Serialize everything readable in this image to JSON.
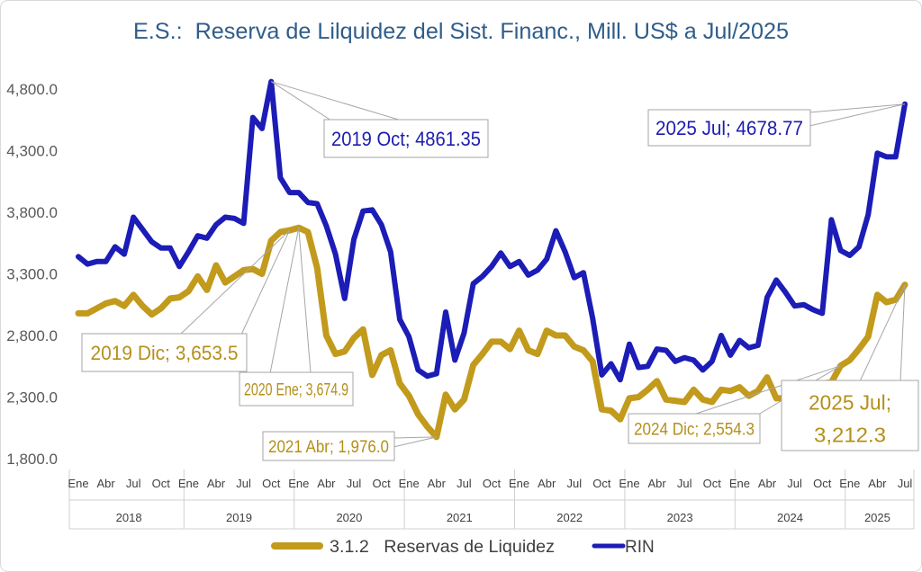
{
  "chart_data": {
    "type": "line",
    "title": "E.S.:  Reserva de Lilquidez del Sist. Financ., Mill. US$ a Jul/2025",
    "x": [
      "2018-01",
      "2018-02",
      "2018-03",
      "2018-04",
      "2018-05",
      "2018-06",
      "2018-07",
      "2018-08",
      "2018-09",
      "2018-10",
      "2018-11",
      "2018-12",
      "2019-01",
      "2019-02",
      "2019-03",
      "2019-04",
      "2019-05",
      "2019-06",
      "2019-07",
      "2019-08",
      "2019-09",
      "2019-10",
      "2019-11",
      "2019-12",
      "2020-01",
      "2020-02",
      "2020-03",
      "2020-04",
      "2020-05",
      "2020-06",
      "2020-07",
      "2020-08",
      "2020-09",
      "2020-10",
      "2020-11",
      "2020-12",
      "2021-01",
      "2021-02",
      "2021-03",
      "2021-04",
      "2021-05",
      "2021-06",
      "2021-07",
      "2021-08",
      "2021-09",
      "2021-10",
      "2021-11",
      "2021-12",
      "2022-01",
      "2022-02",
      "2022-03",
      "2022-04",
      "2022-05",
      "2022-06",
      "2022-07",
      "2022-08",
      "2022-09",
      "2022-10",
      "2022-11",
      "2022-12",
      "2023-01",
      "2023-02",
      "2023-03",
      "2023-04",
      "2023-05",
      "2023-06",
      "2023-07",
      "2023-08",
      "2023-09",
      "2023-10",
      "2023-11",
      "2023-12",
      "2024-01",
      "2024-02",
      "2024-03",
      "2024-04",
      "2024-05",
      "2024-06",
      "2024-07",
      "2024-08",
      "2024-09",
      "2024-10",
      "2024-11",
      "2024-12",
      "2025-01",
      "2025-02",
      "2025-03",
      "2025-04",
      "2025-05",
      "2025-06",
      "2025-07"
    ],
    "series": [
      {
        "name": "3.1.2   Reservas de Liquidez",
        "color": "#c29a1c",
        "values": [
          2980,
          2980,
          3020,
          3060,
          3080,
          3040,
          3130,
          3040,
          2970,
          3020,
          3100,
          3110,
          3160,
          3280,
          3170,
          3370,
          3230,
          3280,
          3330,
          3340,
          3300,
          3570,
          3640,
          3653.5,
          3674.9,
          3640,
          3350,
          2800,
          2650,
          2670,
          2780,
          2850,
          2480,
          2640,
          2680,
          2410,
          2310,
          2160,
          2060,
          1976.0,
          2320,
          2200,
          2280,
          2560,
          2650,
          2750,
          2750,
          2690,
          2840,
          2680,
          2650,
          2840,
          2800,
          2800,
          2710,
          2680,
          2590,
          2200,
          2190,
          2120,
          2290,
          2300,
          2360,
          2430,
          2280,
          2270,
          2260,
          2360,
          2280,
          2260,
          2360,
          2350,
          2380,
          2310,
          2350,
          2460,
          2290,
          2290,
          2360,
          2380,
          2400,
          2410,
          2420,
          2554.3,
          2600,
          2690,
          2790,
          3130,
          3070,
          3090,
          3212.3
        ]
      },
      {
        "name": "RIN",
        "color": "#1c1cb6",
        "values": [
          3440,
          3380,
          3400,
          3400,
          3520,
          3460,
          3760,
          3660,
          3560,
          3510,
          3510,
          3360,
          3480,
          3610,
          3590,
          3700,
          3760,
          3750,
          3710,
          4570,
          4480,
          4861.35,
          4080,
          3960,
          3960,
          3880,
          3870,
          3690,
          3460,
          3100,
          3580,
          3810,
          3820,
          3700,
          3480,
          2930,
          2790,
          2520,
          2470,
          2490,
          2990,
          2600,
          2820,
          3220,
          3280,
          3360,
          3470,
          3360,
          3400,
          3290,
          3330,
          3420,
          3650,
          3480,
          3270,
          3310,
          2940,
          2480,
          2570,
          2440,
          2730,
          2540,
          2550,
          2690,
          2680,
          2590,
          2620,
          2600,
          2520,
          2590,
          2800,
          2640,
          2760,
          2700,
          2720,
          3110,
          3250,
          3150,
          3040,
          3050,
          3010,
          2980,
          3740,
          3490,
          3450,
          3520,
          3780,
          4280,
          4250,
          4250,
          4678.77
        ]
      }
    ],
    "ylim": [
      1800,
      5100
    ],
    "yticks": [
      1800,
      2300,
      2800,
      3300,
      3800,
      4300,
      4800
    ],
    "ytick_labels": [
      "1,800.0",
      "2,300.0",
      "2,800.0",
      "3,300.0",
      "3,800.0",
      "4,300.0",
      "4,800.0"
    ],
    "grid": false,
    "legend_position": "bottom",
    "xaxis": {
      "years": [
        {
          "label": "2018",
          "months": [
            "Ene",
            "Abr",
            "Jul",
            "Oct"
          ]
        },
        {
          "label": "2019",
          "months": [
            "Ene",
            "Abr",
            "Jul",
            "Oct"
          ]
        },
        {
          "label": "2020",
          "months": [
            "Ene",
            "Abr",
            "Jul",
            "Oct"
          ]
        },
        {
          "label": "2021",
          "months": [
            "Ene",
            "Abr",
            "Jul",
            "Oct"
          ]
        },
        {
          "label": "2022",
          "months": [
            "Ene",
            "Abr",
            "Jul",
            "Oct"
          ]
        },
        {
          "label": "2023",
          "months": [
            "Ene",
            "Abr",
            "Jul",
            "Oct"
          ]
        },
        {
          "label": "2024",
          "months": [
            "Ene",
            "Abr",
            "Jul",
            "Oct"
          ]
        },
        {
          "label": "2025",
          "months": [
            "Ene",
            "Abr",
            "Jul"
          ]
        }
      ]
    },
    "annotations": [
      {
        "series": "RIN",
        "x": "2019-10",
        "y": 4861.35,
        "lines": [
          "2019 Oct; 4861.35"
        ]
      },
      {
        "series": "RIN",
        "x": "2025-07",
        "y": 4678.77,
        "lines": [
          "2025 Jul; 4678.77"
        ]
      },
      {
        "series": "3.1.2   Reservas de Liquidez",
        "x": "2019-12",
        "y": 3653.5,
        "lines": [
          "2019 Dic; 3,653.5"
        ]
      },
      {
        "series": "3.1.2   Reservas de Liquidez",
        "x": "2020-01",
        "y": 3674.9,
        "lines": [
          "2020 Ene; 3,674.9"
        ]
      },
      {
        "series": "3.1.2   Reservas de Liquidez",
        "x": "2021-04",
        "y": 1976.0,
        "lines": [
          "2021 Abr; 1,976.0"
        ]
      },
      {
        "series": "3.1.2   Reservas de Liquidez",
        "x": "2024-12",
        "y": 2554.3,
        "lines": [
          "2024 Dic; 2,554.3"
        ]
      },
      {
        "series": "3.1.2   Reservas de Liquidez",
        "x": "2025-07",
        "y": 3212.3,
        "lines": [
          "2025 Jul;",
          "3,212.3"
        ]
      }
    ]
  }
}
